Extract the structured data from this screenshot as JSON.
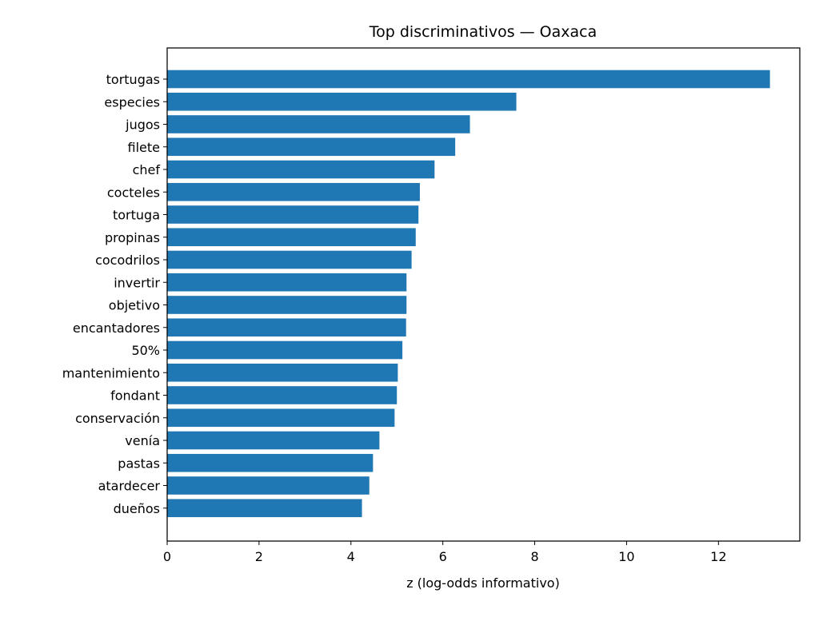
{
  "chart_data": {
    "type": "bar",
    "orientation": "horizontal",
    "title": "Top discriminativos — Oaxaca",
    "xlabel": "z (log-odds informativo)",
    "ylabel": "",
    "categories": [
      "tortugas",
      "especies",
      "jugos",
      "filete",
      "chef",
      "cocteles",
      "tortuga",
      "propinas",
      "cocodrilos",
      "invertir",
      "objetivo",
      "encantadores",
      "50%",
      "mantenimiento",
      "fondant",
      "conservación",
      "venía",
      "pastas",
      "atardecer",
      "dueños"
    ],
    "values": [
      13.12,
      7.6,
      6.59,
      6.27,
      5.82,
      5.5,
      5.47,
      5.41,
      5.32,
      5.21,
      5.21,
      5.2,
      5.12,
      5.02,
      5.0,
      4.95,
      4.62,
      4.48,
      4.4,
      4.24
    ],
    "xlim": [
      0,
      13.77
    ],
    "xticks": [
      "0",
      "2",
      "4",
      "6",
      "8",
      "10",
      "12"
    ],
    "bar_color": "#1f77b4",
    "grid": false,
    "legend": "none"
  }
}
